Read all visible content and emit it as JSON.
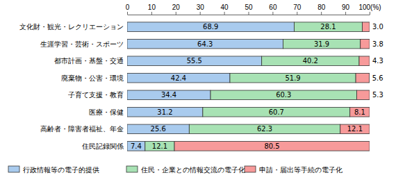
{
  "chart_data": {
    "type": "bar",
    "orientation": "horizontal",
    "stacked": true,
    "data_labels": true,
    "grid": false,
    "legend": "bottom",
    "categories": [
      "文化財・観光・レクリエーション",
      "生涯学習・芸術・スポーツ",
      "都市計画・基盤・交通",
      "廃棄物・公害・環境",
      "子育て支援・教育",
      "医療・保健",
      "高齢者・障害者福祉、年金",
      "住民記録関係"
    ],
    "xlim": [
      0,
      100
    ],
    "xticks": [
      0,
      10,
      20,
      30,
      40,
      50,
      60,
      70,
      80,
      90,
      {
        "value": 100,
        "label": "100(%)"
      }
    ],
    "series": [
      {
        "name": "行政情報等の電子的提供",
        "color": "#a9cbee",
        "values": [
          68.9,
          64.3,
          55.5,
          42.4,
          34.4,
          31.2,
          25.6,
          7.4
        ]
      },
      {
        "name": "住民・企業との情報交流の電子化",
        "color": "#a8e2b4",
        "values": [
          28.1,
          31.9,
          40.2,
          51.9,
          60.3,
          60.7,
          62.3,
          12.1
        ]
      },
      {
        "name": "申請・届出等手続の電子化",
        "color": "#f79a9a",
        "values": [
          3,
          3.8,
          4.3,
          5.6,
          5.3,
          8.1,
          12.1,
          80.5
        ],
        "value_labels": [
          "3.0",
          "3.8",
          "4.3",
          "5.6",
          "5.3",
          "8.1",
          "12.1",
          "80.5"
        ]
      }
    ]
  }
}
